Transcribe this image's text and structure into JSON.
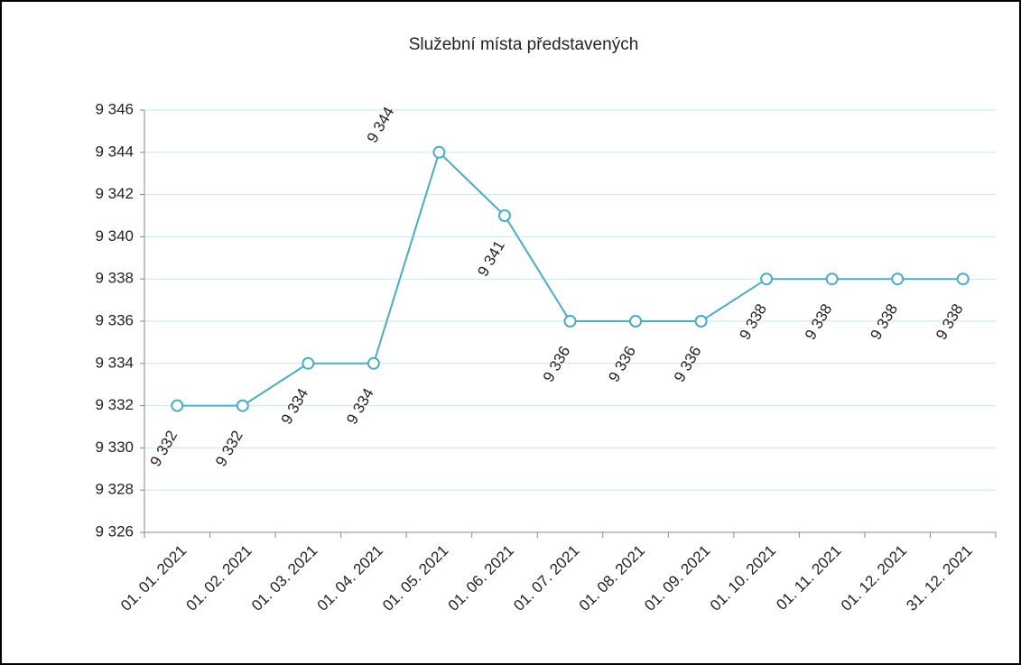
{
  "chart_data": {
    "type": "line",
    "title": "Služební místa představených",
    "categories": [
      "01. 01. 2021",
      "01. 02. 2021",
      "01. 03. 2021",
      "01. 04. 2021",
      "01. 05. 2021",
      "01. 06. 2021",
      "01. 07. 2021",
      "01. 08. 2021",
      "01. 09. 2021",
      "01. 10. 2021",
      "01. 11. 2021",
      "01. 12. 2021",
      "31. 12. 2021"
    ],
    "series": [
      {
        "name": "Služební místa představených",
        "color": "#4bacc6",
        "values": [
          9332,
          9332,
          9334,
          9334,
          9344,
          9341,
          9336,
          9336,
          9336,
          9338,
          9338,
          9338,
          9338
        ],
        "value_labels": [
          "9 332",
          "9 332",
          "9 334",
          "9 334",
          "9 344",
          "9 341",
          "9 336",
          "9 336",
          "9 336",
          "9 338",
          "9 338",
          "9 338",
          "9 338"
        ]
      }
    ],
    "ylim": [
      9326,
      9346
    ],
    "yticks": [
      {
        "value": 9326,
        "label": "9 326"
      },
      {
        "value": 9328,
        "label": "9 328"
      },
      {
        "value": 9330,
        "label": "9 330"
      },
      {
        "value": 9332,
        "label": "9 332"
      },
      {
        "value": 9334,
        "label": "9 334"
      },
      {
        "value": 9336,
        "label": "9 336"
      },
      {
        "value": 9338,
        "label": "9 338"
      },
      {
        "value": 9340,
        "label": "9 340"
      },
      {
        "value": 9342,
        "label": "9 342"
      },
      {
        "value": 9344,
        "label": "9 344"
      },
      {
        "value": 9346,
        "label": "9 346"
      }
    ],
    "grid": true
  }
}
